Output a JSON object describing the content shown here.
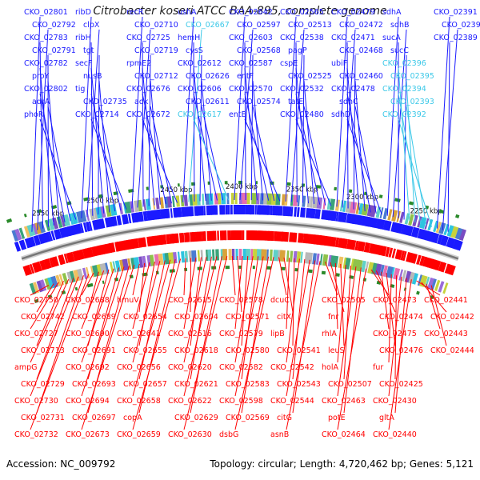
{
  "title": "Citrobacter koseri ATCC BAA-895, complete genome",
  "footer": {
    "accession": "Accession: NC_009792",
    "summary": "Topology: circular; Length: 4,720,462 bp; Genes: 5,121"
  },
  "colors": {
    "forward": "#1a1aff",
    "forward_highlight": "#3cc8e8",
    "reverse": "#ff0000",
    "backbone": "#777777",
    "tick_marker": "#2a8a2a"
  },
  "scale_ticks": [
    "2550 kbp",
    "2500 kbp",
    "2450 kbp",
    "2400 kbp",
    "2350 kbp",
    "2300 kbp",
    "2250 kbp"
  ],
  "forward_labels": [
    {
      "text": "CKO_02801"
    },
    {
      "text": "CKO_02792"
    },
    {
      "text": "CKO_02783"
    },
    {
      "text": "CKO_02791"
    },
    {
      "text": "CKO_02782"
    },
    {
      "text": "proY"
    },
    {
      "text": "CKO_02802"
    },
    {
      "text": "adrA"
    },
    {
      "text": "phoR"
    },
    {
      "text": "ribD"
    },
    {
      "text": "clpX"
    },
    {
      "text": "ribH"
    },
    {
      "text": "tgt"
    },
    {
      "text": "secF"
    },
    {
      "text": "nusB"
    },
    {
      "text": "tig"
    },
    {
      "text": "CKO_02735"
    },
    {
      "text": "CKO_02714"
    },
    {
      "text": "recR"
    },
    {
      "text": "CKO_02710"
    },
    {
      "text": "CKO_02725"
    },
    {
      "text": "CKO_02719"
    },
    {
      "text": "rpmE2"
    },
    {
      "text": "CKO_02712"
    },
    {
      "text": "CKO_02676"
    },
    {
      "text": "adk"
    },
    {
      "text": "CKO_02672"
    },
    {
      "text": "ushA"
    },
    {
      "text": "CKO_02667",
      "highlight": true
    },
    {
      "text": "hemH"
    },
    {
      "text": "cysS"
    },
    {
      "text": "CKO_02612"
    },
    {
      "text": "CKO_02626"
    },
    {
      "text": "CKO_02606"
    },
    {
      "text": "CKO_02611"
    },
    {
      "text": "CKO_02617",
      "highlight": true
    },
    {
      "text": "CKO_02642"
    },
    {
      "text": "CKO_02597"
    },
    {
      "text": "CKO_02603"
    },
    {
      "text": "CKO_02568"
    },
    {
      "text": "CKO_02587"
    },
    {
      "text": "entF"
    },
    {
      "text": "CKO_02570"
    },
    {
      "text": "CKO_02574"
    },
    {
      "text": "entE"
    },
    {
      "text": "CKO_02565"
    },
    {
      "text": "CKO_02513"
    },
    {
      "text": "CKO_02538"
    },
    {
      "text": "pagP"
    },
    {
      "text": "cspE"
    },
    {
      "text": "CKO_02525"
    },
    {
      "text": "CKO_02532"
    },
    {
      "text": "tatE"
    },
    {
      "text": "CKO_02480"
    },
    {
      "text": "CKO_02479"
    },
    {
      "text": "CKO_02472"
    },
    {
      "text": "CKO_02471"
    },
    {
      "text": "CKO_02468"
    },
    {
      "text": "ubiF"
    },
    {
      "text": "CKO_02460"
    },
    {
      "text": "CKO_02478"
    },
    {
      "text": "sdhC"
    },
    {
      "text": "sdhD"
    },
    {
      "text": "sdhA"
    },
    {
      "text": "sdhB"
    },
    {
      "text": "sucA"
    },
    {
      "text": "sucC"
    },
    {
      "text": "CKO_02396",
      "highlight": true
    },
    {
      "text": "CKO_02395",
      "highlight": true
    },
    {
      "text": "CKO_02394",
      "highlight": true
    },
    {
      "text": "CKO_02393",
      "highlight": true
    },
    {
      "text": "CKO_02392",
      "highlight": true
    },
    {
      "text": "CKO_02391"
    },
    {
      "text": "CKO_02390"
    },
    {
      "text": "CKO_02389"
    }
  ],
  "reverse_labels": [
    {
      "text": "CKO_02750"
    },
    {
      "text": "CKO_02742"
    },
    {
      "text": "CKO_02727"
    },
    {
      "text": "CKO_02713"
    },
    {
      "text": "ampG"
    },
    {
      "text": "CKO_02729"
    },
    {
      "text": "CKO_02730"
    },
    {
      "text": "CKO_02731"
    },
    {
      "text": "CKO_02732"
    },
    {
      "text": "CKO_02688"
    },
    {
      "text": "CKO_02689"
    },
    {
      "text": "CKO_02690"
    },
    {
      "text": "CKO_02691"
    },
    {
      "text": "CKO_02692"
    },
    {
      "text": "CKO_02693"
    },
    {
      "text": "CKO_02694"
    },
    {
      "text": "CKO_02697"
    },
    {
      "text": "CKO_02673"
    },
    {
      "text": "hmuV"
    },
    {
      "text": "CKO_02654"
    },
    {
      "text": "CKO_02641"
    },
    {
      "text": "CKO_02655"
    },
    {
      "text": "CKO_02656"
    },
    {
      "text": "CKO_02657"
    },
    {
      "text": "CKO_02658"
    },
    {
      "text": "copA"
    },
    {
      "text": "CKO_02659"
    },
    {
      "text": "CKO_02615"
    },
    {
      "text": "CKO_02604"
    },
    {
      "text": "CKO_02616"
    },
    {
      "text": "CKO_02618"
    },
    {
      "text": "CKO_02620"
    },
    {
      "text": "CKO_02621"
    },
    {
      "text": "CKO_02622"
    },
    {
      "text": "CKO_02629"
    },
    {
      "text": "CKO_02630"
    },
    {
      "text": "CKO_02578"
    },
    {
      "text": "CKO_02571"
    },
    {
      "text": "CKO_02579"
    },
    {
      "text": "CKO_02580"
    },
    {
      "text": "CKO_02582"
    },
    {
      "text": "CKO_02583"
    },
    {
      "text": "CKO_02598"
    },
    {
      "text": "CKO_02569"
    },
    {
      "text": "dsbG"
    },
    {
      "text": "dcuC"
    },
    {
      "text": "citX"
    },
    {
      "text": "lipB"
    },
    {
      "text": "CKO_02541"
    },
    {
      "text": "CKO_02542"
    },
    {
      "text": "CKO_02543"
    },
    {
      "text": "CKO_02544"
    },
    {
      "text": "citG"
    },
    {
      "text": "asnB"
    },
    {
      "text": "CKO_02505"
    },
    {
      "text": "fnr"
    },
    {
      "text": "rhlA"
    },
    {
      "text": "leuS"
    },
    {
      "text": "holA"
    },
    {
      "text": "CKO_02507"
    },
    {
      "text": "CKO_02463"
    },
    {
      "text": "potE"
    },
    {
      "text": "CKO_02464"
    },
    {
      "text": "CKO_02473"
    },
    {
      "text": "CKO_02474"
    },
    {
      "text": "CKO_02475"
    },
    {
      "text": "CKO_02476"
    },
    {
      "text": "fur"
    },
    {
      "text": "CKO_02425"
    },
    {
      "text": "CKO_02430"
    },
    {
      "text": "gltA"
    },
    {
      "text": "CKO_02440"
    },
    {
      "text": "CKO_02441"
    },
    {
      "text": "CKO_02442"
    },
    {
      "text": "CKO_02443"
    },
    {
      "text": "CKO_02444"
    }
  ]
}
